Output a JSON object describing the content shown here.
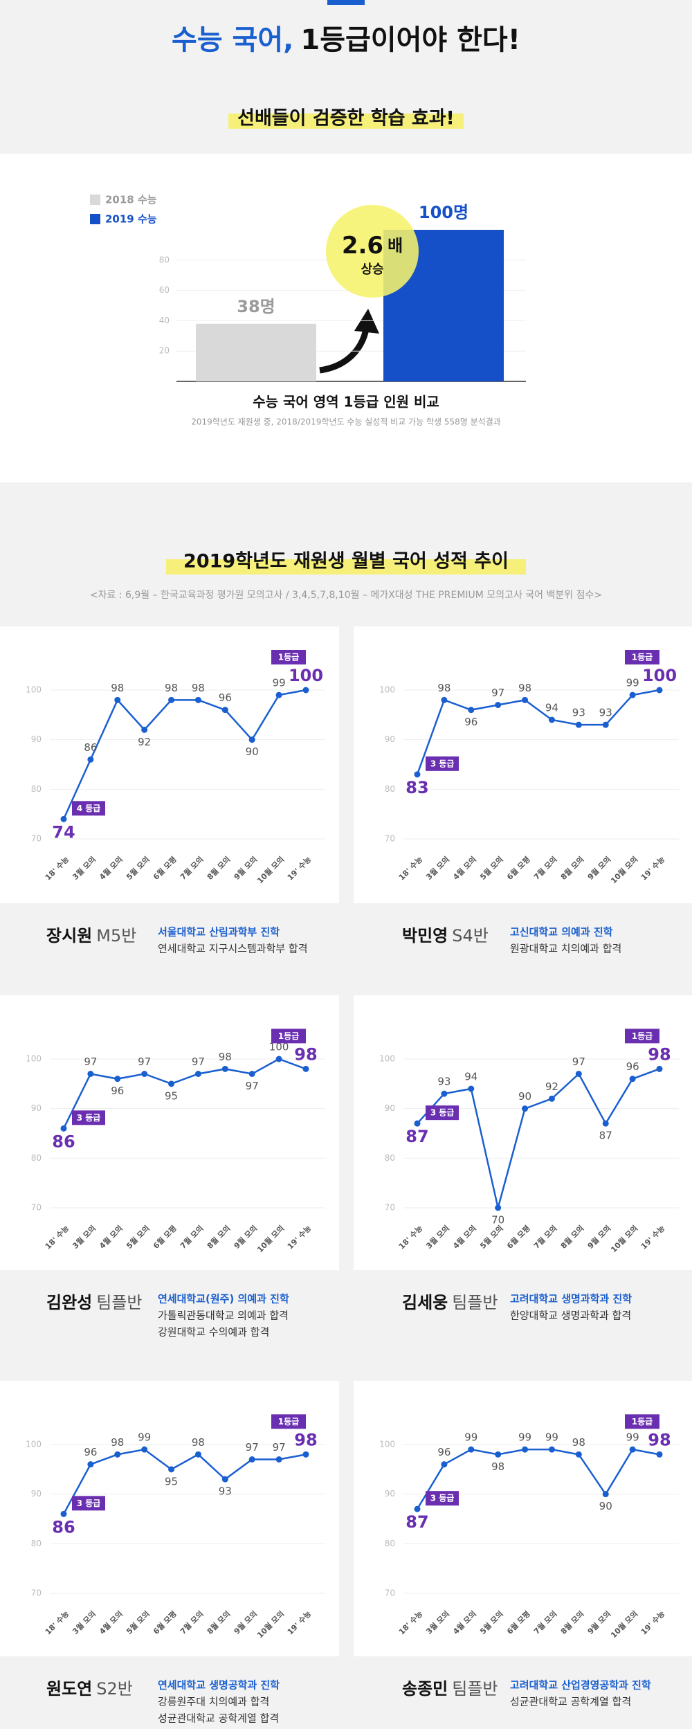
{
  "header": {
    "title_highlight": "수능 국어,",
    "title_rest": "1등급이어야 한다!",
    "subtitle": "선배들이 검증한 학습 효과!"
  },
  "section": {
    "title": "2019학년도 재원생 월별 국어 성적 추이",
    "source": "<자료 : 6,9월 – 한국교육과정 평가원 모의고사 / 3,4,5,7,8,10월 – 메가X대성 THE PREMIUM 모의고사 국어 백분위 점수>"
  },
  "chart_data": [
    {
      "type": "bar",
      "categories": [
        "2018 수능",
        "2019 수능"
      ],
      "values": [
        38,
        100
      ],
      "value_labels": [
        "38명",
        "100명"
      ],
      "colors": [
        "#d9d9d9",
        "#1550c8"
      ],
      "label_colors": [
        "#9a9a9a",
        "#1550c8"
      ],
      "ylim": [
        0,
        100
      ],
      "yticks": [
        20,
        40,
        60,
        80
      ],
      "grid": true,
      "annotation": [
        "2.6",
        "배",
        "상승"
      ],
      "title": "수능 국어 영역 1등급 인원 비교",
      "note": "2019학년도 재원생 중, 2018/2019학년도 수능 실성적 비교 가능 학생 558명 분석결과"
    },
    {
      "type": "line",
      "categories": [
        "18' 수능",
        "3월 모의",
        "4월 모의",
        "5월 모의",
        "6월 모평",
        "7월 모의",
        "8월 모의",
        "9월 모의",
        "10월 모의",
        "19' 수능"
      ],
      "values": [
        74,
        86,
        98,
        92,
        98,
        98,
        96,
        90,
        99,
        100
      ],
      "color": "#1a5fd0",
      "ylim": [
        70,
        100
      ],
      "yticks": [
        70,
        80,
        90,
        100
      ],
      "grid": true,
      "badges": [
        "4 등급",
        "1등급"
      ],
      "student": {
        "name": "장시원",
        "class": "M5반",
        "schools": [
          "서울대학교 산림과학부 진학",
          "연세대학교 지구시스템과학부 합격"
        ]
      }
    },
    {
      "type": "line",
      "categories": [
        "18' 수능",
        "3월 모의",
        "4월 모의",
        "5월 모의",
        "6월 모평",
        "7월 모의",
        "8월 모의",
        "9월 모의",
        "10월 모의",
        "19' 수능"
      ],
      "values": [
        83,
        98,
        96,
        97,
        98,
        94,
        93,
        93,
        99,
        100
      ],
      "color": "#1a5fd0",
      "ylim": [
        70,
        100
      ],
      "yticks": [
        70,
        80,
        90,
        100
      ],
      "grid": true,
      "badges": [
        "3 등급",
        "1등급"
      ],
      "student": {
        "name": "박민영",
        "class": "S4반",
        "schools": [
          "고신대학교 의예과 진학",
          "원광대학교 치의예과 합격"
        ]
      }
    },
    {
      "type": "line",
      "categories": [
        "18' 수능",
        "3월 모의",
        "4월 모의",
        "5월 모의",
        "6월 모평",
        "7월 모의",
        "8월 모의",
        "9월 모의",
        "10월 모의",
        "19' 수능"
      ],
      "values": [
        86,
        97,
        96,
        97,
        95,
        97,
        98,
        97,
        100,
        98
      ],
      "color": "#1a5fd0",
      "ylim": [
        70,
        100
      ],
      "yticks": [
        70,
        80,
        90,
        100
      ],
      "grid": true,
      "badges": [
        "3 등급",
        "1등급"
      ],
      "student": {
        "name": "김완성",
        "class": "팀플반",
        "schools": [
          "연세대학교(원주) 의예과 진학",
          "가톨릭관동대학교 의예과 합격",
          "강원대학교 수의예과 합격"
        ]
      }
    },
    {
      "type": "line",
      "categories": [
        "18' 수능",
        "3월 모의",
        "4월 모의",
        "5월 모의",
        "6월 모평",
        "7월 모의",
        "8월 모의",
        "9월 모의",
        "10월 모의",
        "19' 수능"
      ],
      "values": [
        87,
        93,
        94,
        70,
        90,
        92,
        97,
        87,
        96,
        98
      ],
      "color": "#1a5fd0",
      "ylim": [
        70,
        100
      ],
      "yticks": [
        70,
        80,
        90,
        100
      ],
      "grid": true,
      "badges": [
        "3 등급",
        "1등급"
      ],
      "student": {
        "name": "김세웅",
        "class": "팀플반",
        "schools": [
          "고려대학교 생명과학과 진학",
          "한양대학교 생명과학과 합격"
        ]
      }
    },
    {
      "type": "line",
      "categories": [
        "18' 수능",
        "3월 모의",
        "4월 모의",
        "5월 모의",
        "6월 모평",
        "7월 모의",
        "8월 모의",
        "9월 모의",
        "10월 모의",
        "19' 수능"
      ],
      "values": [
        86,
        96,
        98,
        99,
        95,
        98,
        93,
        97,
        97,
        98
      ],
      "color": "#1a5fd0",
      "ylim": [
        70,
        100
      ],
      "yticks": [
        70,
        80,
        90,
        100
      ],
      "grid": true,
      "badges": [
        "3 등급",
        "1등급"
      ],
      "student": {
        "name": "원도연",
        "class": "S2반",
        "schools": [
          "연세대학교 생명공학과 진학",
          "강릉원주대 치의예과 합격",
          "성균관대학교 공학계열 합격"
        ]
      }
    },
    {
      "type": "line",
      "categories": [
        "18' 수능",
        "3월 모의",
        "4월 모의",
        "5월 모의",
        "6월 모평",
        "7월 모의",
        "8월 모의",
        "9월 모의",
        "10월 모의",
        "19' 수능"
      ],
      "values": [
        87,
        96,
        99,
        98,
        99,
        99,
        98,
        90,
        99,
        98
      ],
      "color": "#1a5fd0",
      "ylim": [
        70,
        100
      ],
      "yticks": [
        70,
        80,
        90,
        100
      ],
      "grid": true,
      "badges": [
        "3 등급",
        "1등급"
      ],
      "student": {
        "name": "송종민",
        "class": "팀플반",
        "schools": [
          "고려대학교 산업경영공학과 진학",
          "성균관대학교 공학계열 합격"
        ]
      }
    }
  ]
}
